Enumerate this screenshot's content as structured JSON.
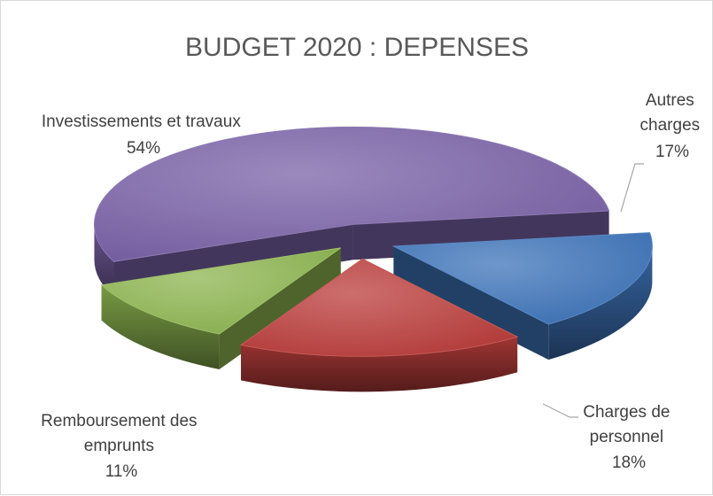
{
  "chart_data": {
    "type": "pie",
    "title": "BUDGET 2020 : DEPENSES",
    "categories": [
      "Autres charges",
      "Charges de personnel",
      "Remboursement des emprunts",
      "Investissements et travaux"
    ],
    "values": [
      17,
      18,
      11,
      54
    ],
    "labels": [
      {
        "lines": [
          "Autres",
          "charges"
        ],
        "pct": "17%"
      },
      {
        "lines": [
          "Charges de",
          "personnel"
        ],
        "pct": "18%"
      },
      {
        "lines": [
          "Remboursement des",
          "emprunts"
        ],
        "pct": "11%"
      },
      {
        "lines": [
          "Investissements et travaux"
        ],
        "pct": "54%"
      }
    ],
    "colors": [
      "#3e74ba",
      "#bb3e3c",
      "#8db550",
      "#7a62a7"
    ],
    "legend": "none",
    "exploded": true
  }
}
